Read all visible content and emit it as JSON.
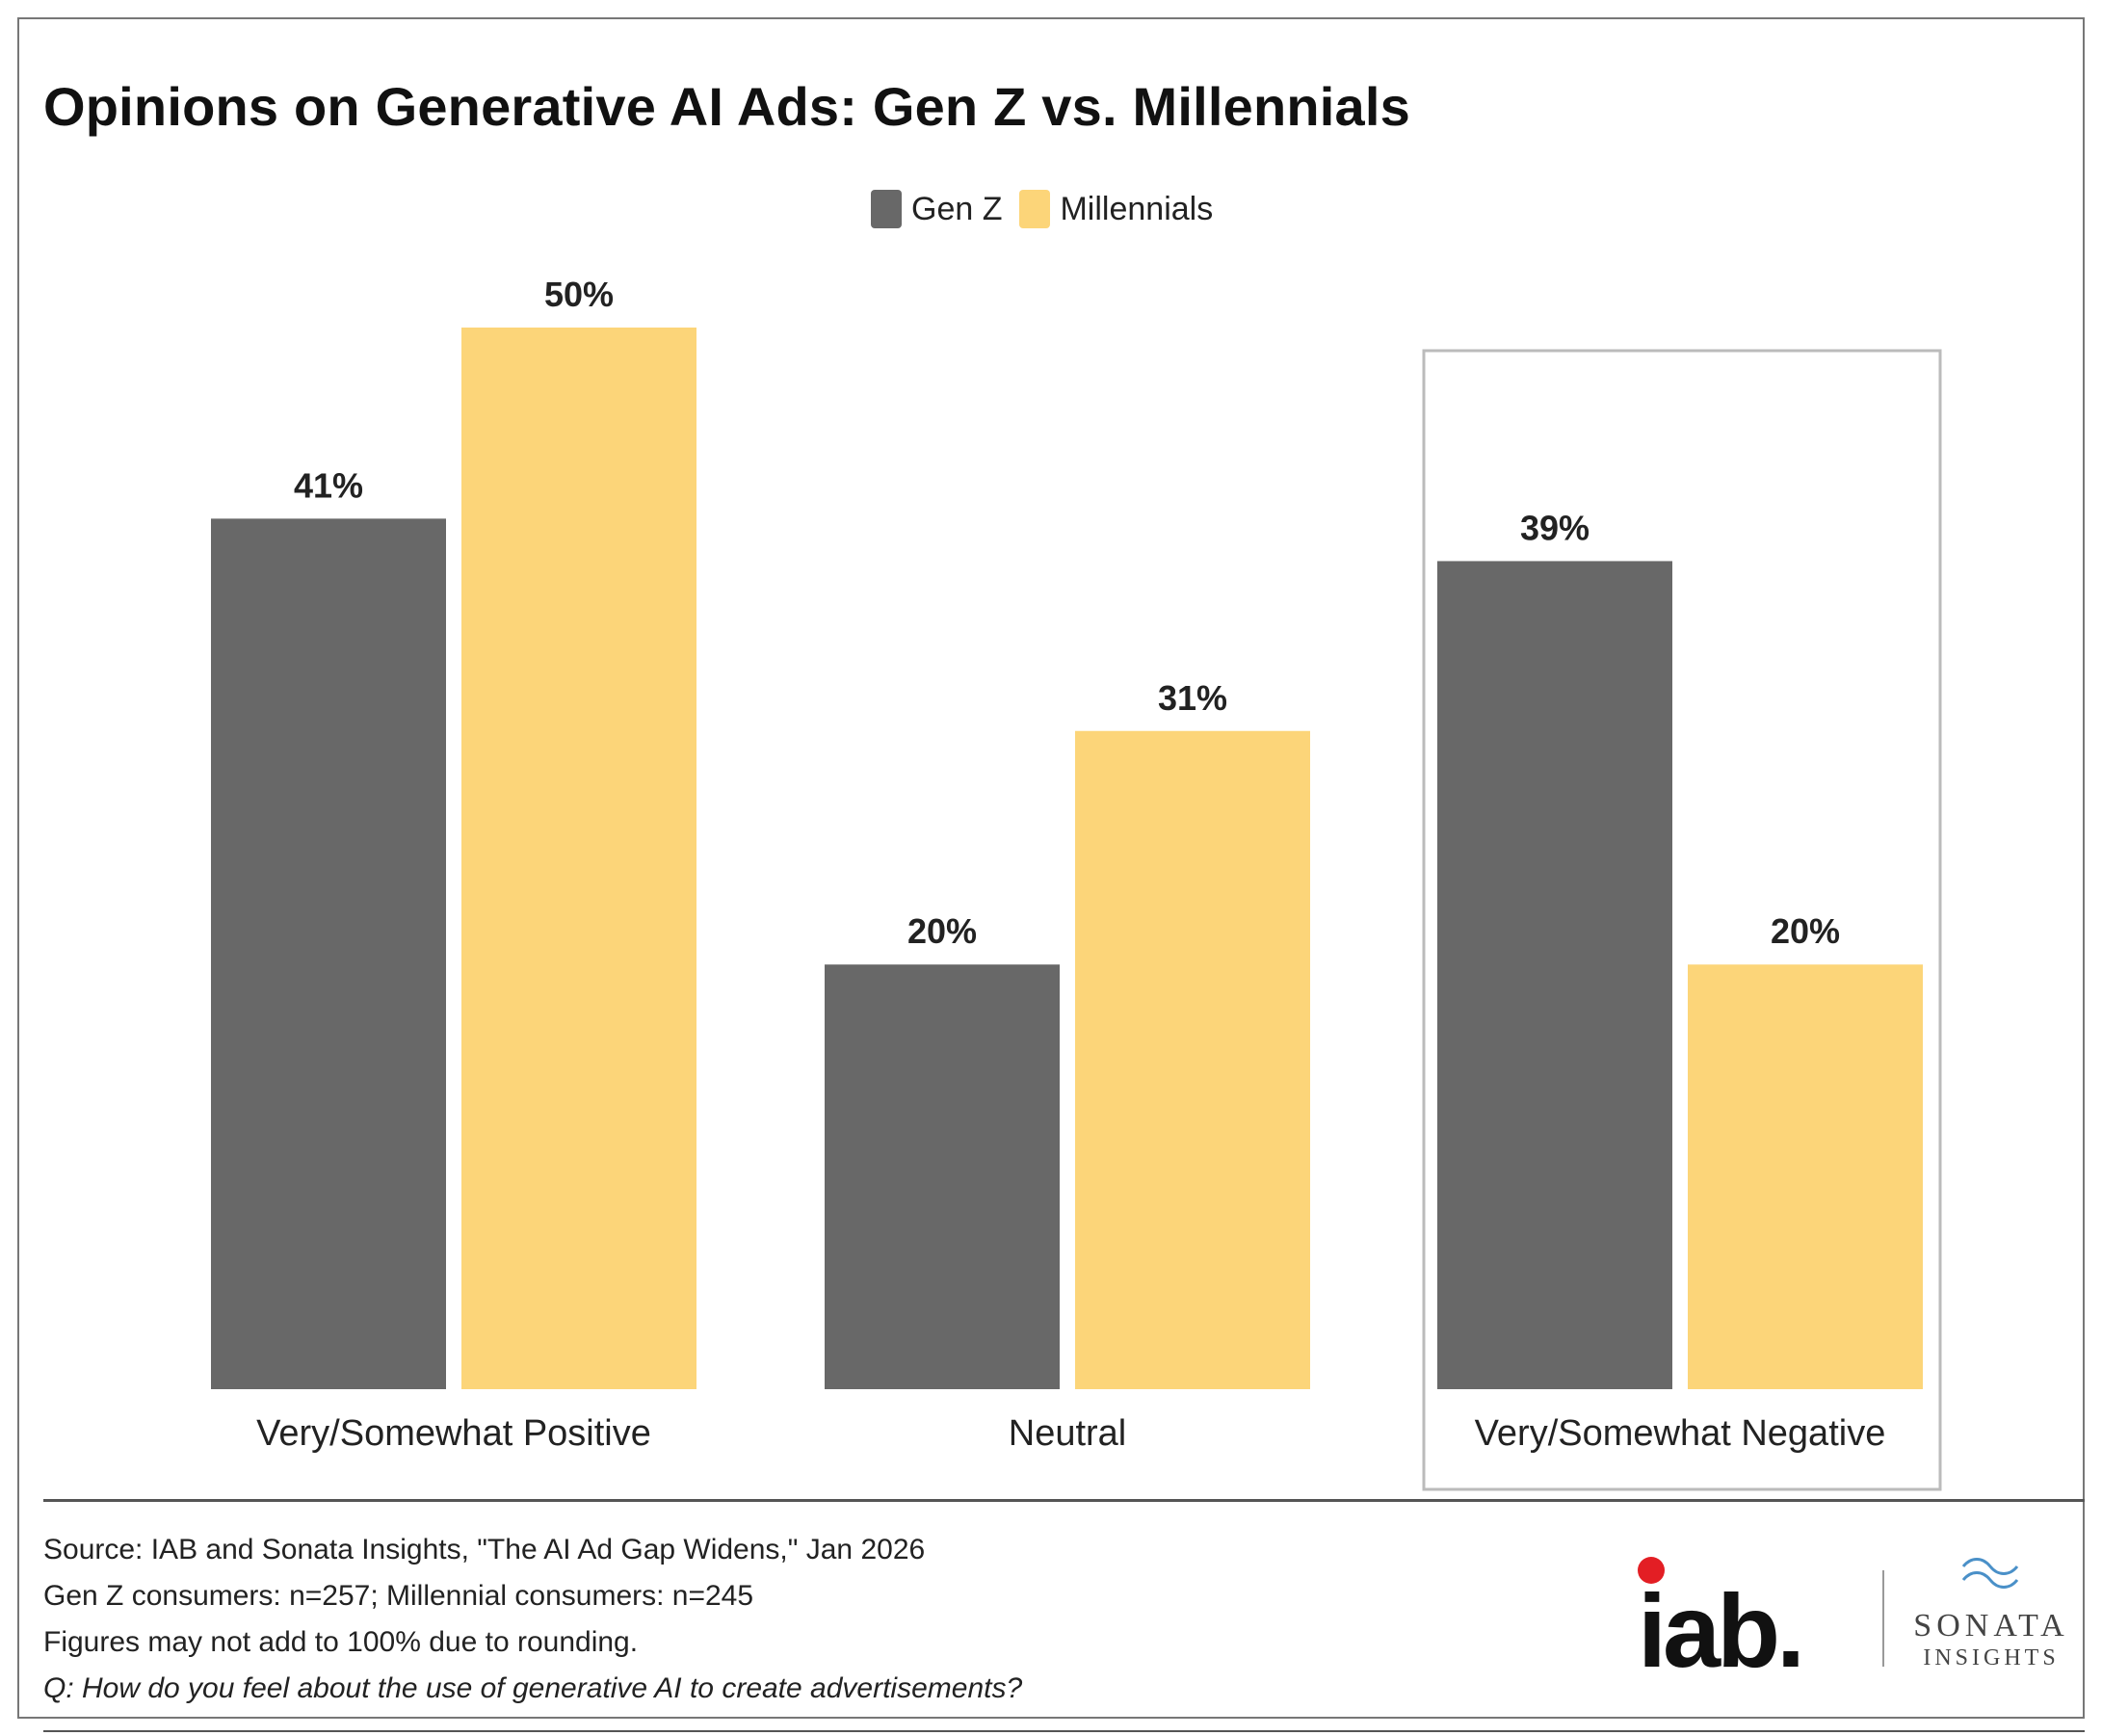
{
  "title": "Opinions on Generative AI Ads: Gen Z vs. Millennials",
  "legend": [
    {
      "name": "Gen Z",
      "color": "#686868"
    },
    {
      "name": "Millennials",
      "color": "#FCD579"
    }
  ],
  "chart_data": {
    "type": "bar",
    "title": "Opinions on Generative AI Ads: Gen Z vs. Millennials",
    "categories": [
      "Very/Somewhat Positive",
      "Neutral",
      "Very/Somewhat Negative"
    ],
    "series": [
      {
        "name": "Gen Z",
        "values": [
          41,
          20,
          39
        ],
        "color": "#686868"
      },
      {
        "name": "Millennials",
        "values": [
          50,
          31,
          20
        ],
        "color": "#FCD579"
      }
    ],
    "data_labels": [
      [
        "41%",
        "20%",
        "39%"
      ],
      [
        "50%",
        "31%",
        "20%"
      ]
    ],
    "ylim": [
      0,
      50
    ],
    "grid": false,
    "legend_position": "top-center",
    "highlighted_category": "Very/Somewhat Negative"
  },
  "footnotes": {
    "source": "Source: IAB and Sonata Insights, \"The AI Ad Gap Widens,\" Jan 2026",
    "sample": "Gen Z consumers: n=257; Millennial consumers: n=245",
    "rounding": "Figures may not add to 100% due to rounding.",
    "question": "Q: How do you feel about the use of generative AI to create advertisements?"
  },
  "logos": {
    "iab": "iab.",
    "sonata_line1": "SONATA",
    "sonata_line2": "INSIGHTS",
    "iab_dot_color": "#E31E24"
  }
}
